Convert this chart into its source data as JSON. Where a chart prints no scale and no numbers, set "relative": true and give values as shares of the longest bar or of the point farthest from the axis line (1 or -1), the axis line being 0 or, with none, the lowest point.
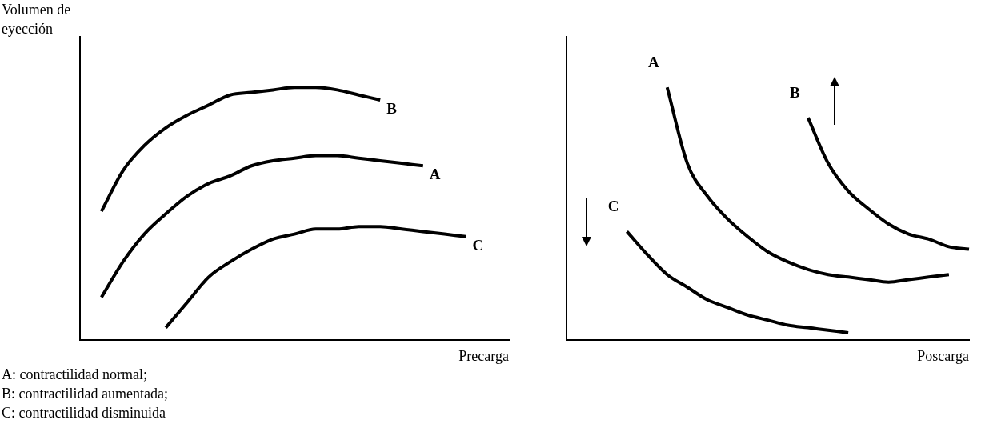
{
  "chart_data": [
    {
      "type": "line",
      "relative": true,
      "ylabel": "Volumen de eyección",
      "xlabel": "Precarga",
      "categories": [
        null,
        null,
        null,
        null,
        null,
        null,
        null,
        null,
        null,
        null,
        null,
        null,
        null,
        null,
        null,
        null,
        null,
        null,
        null,
        null,
        null
      ],
      "series": [
        {
          "name": "B",
          "color": "#000000",
          "values": [
            null,
            0.51,
            0.67,
            0.77,
            0.84,
            0.89,
            0.93,
            0.97,
            0.98,
            0.99,
            1,
            1,
            0.99,
            0.97,
            0.95,
            null,
            null,
            null,
            null,
            null,
            null
          ]
        },
        {
          "name": "A",
          "color": "#000000",
          "values": [
            null,
            0.17,
            0.31,
            0.42,
            0.5,
            0.57,
            0.62,
            0.65,
            0.69,
            0.71,
            0.72,
            0.73,
            0.73,
            0.72,
            0.71,
            0.7,
            0.69,
            null,
            null,
            null,
            null
          ]
        },
        {
          "name": "C",
          "color": "#000000",
          "values": [
            null,
            null,
            null,
            null,
            0.05,
            0.15,
            0.25,
            0.31,
            0.36,
            0.4,
            0.42,
            0.44,
            0.44,
            0.45,
            0.45,
            0.44,
            0.43,
            0.42,
            0.41,
            null,
            null
          ]
        }
      ],
      "annotations": [
        "A: contractilidad normal;",
        "B: contractilidad aumentada;",
        "C: contractilidad disminuida"
      ]
    },
    {
      "type": "line",
      "relative": true,
      "xlabel": "Poscarga",
      "categories": [
        null,
        null,
        null,
        null,
        null,
        null,
        null,
        null,
        null,
        null,
        null,
        null,
        null,
        null,
        null,
        null,
        null,
        null,
        null,
        null,
        null
      ],
      "series": [
        {
          "name": "A",
          "color": "#000000",
          "values": [
            null,
            null,
            null,
            null,
            null,
            1,
            0.7,
            0.57,
            0.48,
            0.41,
            0.35,
            0.31,
            0.28,
            0.26,
            0.25,
            0.24,
            0.23,
            0.24,
            0.25,
            0.26,
            null
          ]
        },
        {
          "name": "B",
          "color": "#000000",
          "values": [
            null,
            null,
            null,
            null,
            null,
            null,
            null,
            null,
            null,
            null,
            null,
            null,
            0.88,
            0.7,
            0.59,
            0.52,
            0.46,
            0.42,
            0.4,
            0.37,
            0.36
          ]
        },
        {
          "name": "C",
          "color": "#000000",
          "values": [
            null,
            null,
            null,
            0.43,
            0.34,
            0.26,
            0.21,
            0.16,
            0.13,
            0.1,
            0.08,
            0.06,
            0.05,
            0.04,
            0.03,
            null,
            null,
            null,
            null,
            null,
            null
          ]
        }
      ]
    }
  ]
}
